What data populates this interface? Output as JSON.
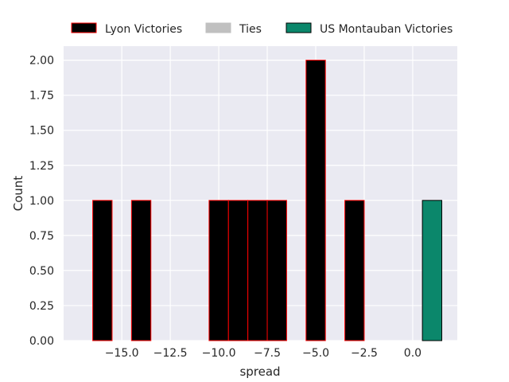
{
  "chart_data": {
    "type": "bar",
    "title": "",
    "xlabel": "spread",
    "ylabel": "Count",
    "xlim": [
      -18.0,
      2.3
    ],
    "ylim": [
      0,
      2.1
    ],
    "xticks": [
      -15.0,
      -12.5,
      -10.0,
      -7.5,
      -5.0,
      -2.5,
      0.0
    ],
    "xtick_labels": [
      "−15.0",
      "−12.5",
      "−10.0",
      "−7.5",
      "−5.0",
      "−2.5",
      "0.0"
    ],
    "yticks": [
      0,
      0.25,
      0.5,
      0.75,
      1.0,
      1.25,
      1.5,
      1.75,
      2.0
    ],
    "ytick_labels": [
      "0.00",
      "0.25",
      "0.50",
      "0.75",
      "1.00",
      "1.25",
      "1.50",
      "1.75",
      "2.00"
    ],
    "grid": true,
    "legend_position": "top-center, above plot",
    "bin_width": 1.0,
    "series": [
      {
        "name": "Lyon Victories",
        "fill": "#000000",
        "edge": "#ff0000",
        "bins": [
          {
            "x": -16,
            "count": 1
          },
          {
            "x": -14,
            "count": 1
          },
          {
            "x": -10,
            "count": 1
          },
          {
            "x": -9,
            "count": 1
          },
          {
            "x": -8,
            "count": 1
          },
          {
            "x": -7,
            "count": 1
          },
          {
            "x": -5,
            "count": 2
          },
          {
            "x": -3,
            "count": 1
          }
        ]
      },
      {
        "name": "Ties",
        "fill": "#c0c0c0",
        "edge": "#c0c0c0",
        "bins": []
      },
      {
        "name": "US Montauban Victories",
        "fill": "#0b876b",
        "edge": "#000000",
        "bins": [
          {
            "x": 1,
            "count": 1
          }
        ]
      }
    ]
  }
}
